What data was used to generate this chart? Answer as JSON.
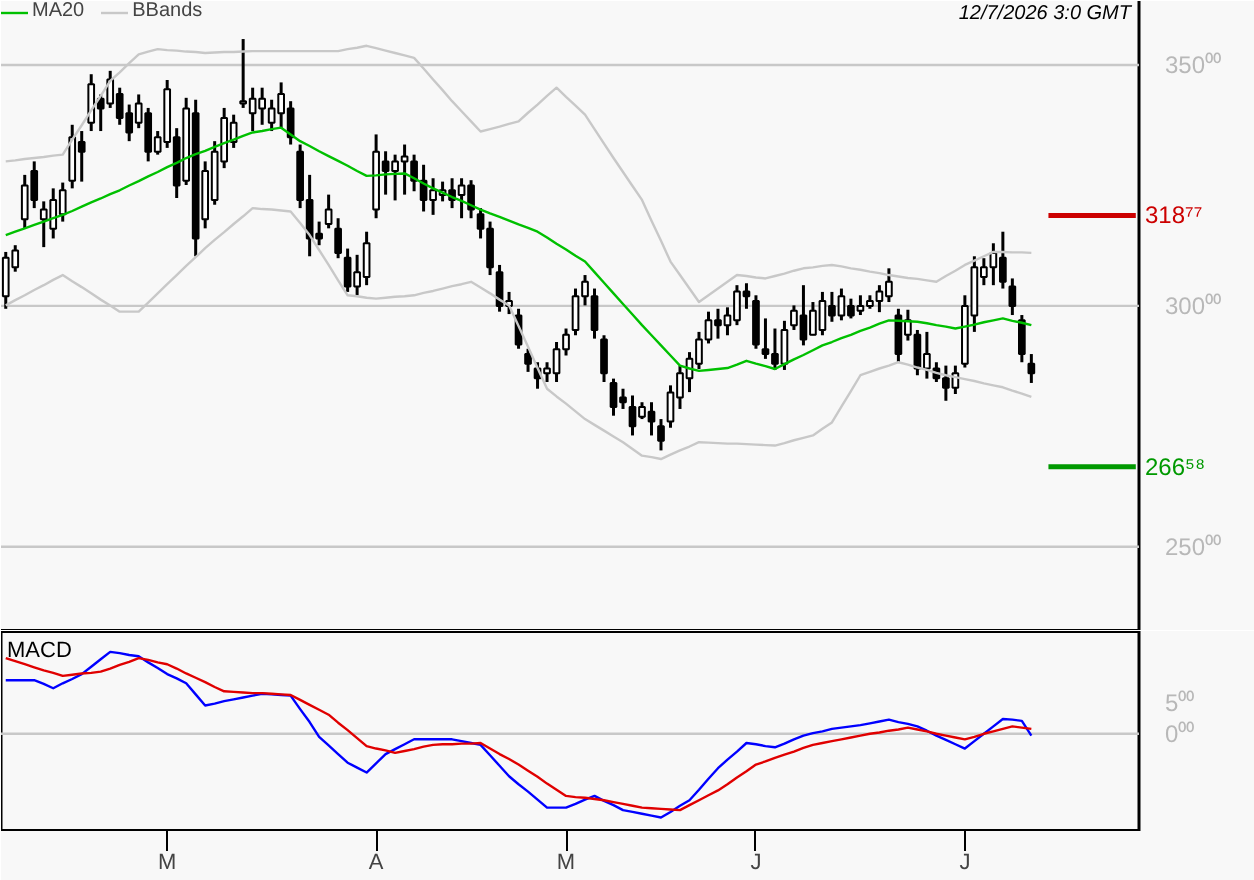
{
  "chart_data": [
    {
      "type": "candlestick",
      "color": "#000000",
      "categories": [
        null,
        null,
        null,
        null,
        null,
        null,
        null,
        null,
        null,
        null,
        null,
        null,
        null,
        null,
        null,
        null,
        null,
        null,
        null,
        null,
        null,
        null,
        null,
        null,
        null,
        null,
        null,
        null,
        null,
        null,
        null,
        null,
        null,
        null,
        null,
        null,
        null,
        null,
        null,
        null,
        null,
        null,
        null,
        null,
        null,
        null,
        null,
        null,
        null,
        null,
        null,
        null,
        null,
        null,
        null,
        null,
        null,
        null,
        null,
        null,
        null,
        null,
        null,
        null,
        null,
        null,
        null,
        null,
        null,
        null,
        null,
        null,
        null,
        null,
        null,
        null,
        null,
        null,
        null,
        null,
        null,
        null,
        null,
        null,
        null,
        null,
        null,
        null,
        null,
        null,
        null,
        null,
        null,
        null,
        null,
        null,
        null,
        null,
        null,
        null,
        null,
        null,
        null,
        null,
        null,
        null,
        null,
        null,
        null
      ],
      "ohlc": [
        [
          302,
          311.2,
          299.4,
          310
        ],
        [
          308,
          312.6,
          307.1,
          311.5
        ],
        [
          318,
          327.2,
          316.1,
          325
        ],
        [
          328,
          330.0,
          320.3,
          322
        ],
        [
          318,
          321.7,
          312.2,
          320
        ],
        [
          316,
          324.4,
          314.0,
          322
        ],
        [
          319,
          325.6,
          317.5,
          324
        ],
        [
          326,
          337.6,
          324.4,
          335
        ],
        [
          334,
          336.3,
          325.8,
          332
        ],
        [
          338,
          348.1,
          336.3,
          346
        ],
        [
          343,
          343.9,
          336.3,
          341
        ],
        [
          342,
          348.8,
          341.1,
          347
        ],
        [
          344,
          345.3,
          337.6,
          339
        ],
        [
          340,
          341.8,
          334.2,
          336
        ],
        [
          338,
          343.9,
          336.9,
          342
        ],
        [
          340,
          341.1,
          330.0,
          332
        ],
        [
          332,
          336.3,
          331.4,
          335
        ],
        [
          334,
          346.9,
          332.8,
          345
        ],
        [
          335,
          336.9,
          322.4,
          325
        ],
        [
          326,
          343.2,
          325.1,
          341
        ],
        [
          340,
          342.8,
          310.3,
          314
        ],
        [
          318,
          330.0,
          316.1,
          328
        ],
        [
          322,
          334.2,
          321.0,
          332
        ],
        [
          330,
          341.1,
          328.6,
          339
        ],
        [
          334,
          339.7,
          332.8,
          338
        ],
        [
          342,
          355.4,
          341.1,
          342.5
        ],
        [
          340,
          345.3,
          336.3,
          343
        ],
        [
          341,
          345.3,
          337.6,
          343
        ],
        [
          338,
          342.8,
          336.3,
          341
        ],
        [
          340,
          346.4,
          336.9,
          344
        ],
        [
          341,
          342.5,
          333.5,
          335
        ],
        [
          332,
          333.5,
          320.3,
          322
        ],
        [
          322,
          327.2,
          310.3,
          314
        ],
        [
          315,
          317.5,
          312.6,
          314
        ],
        [
          317,
          323.1,
          316.1,
          320
        ],
        [
          316,
          318.2,
          309.9,
          311
        ],
        [
          310,
          311.9,
          302.9,
          304
        ],
        [
          304,
          310.6,
          302.2,
          307
        ],
        [
          306,
          315.4,
          304.3,
          313
        ],
        [
          320,
          335.6,
          318.2,
          332
        ],
        [
          330,
          332.1,
          323.1,
          328
        ],
        [
          328,
          331.4,
          321.9,
          330
        ],
        [
          330,
          333.5,
          323.1,
          331
        ],
        [
          330,
          331.4,
          323.8,
          326
        ],
        [
          326,
          329.3,
          319.6,
          322
        ],
        [
          322,
          326.5,
          318.9,
          324
        ],
        [
          323,
          325.8,
          321.7,
          324
        ],
        [
          324,
          326.5,
          320.3,
          322
        ],
        [
          323,
          326.5,
          318.2,
          325
        ],
        [
          325,
          326.1,
          318.2,
          320
        ],
        [
          319,
          320.3,
          314.0,
          316
        ],
        [
          316,
          317.5,
          306.4,
          308
        ],
        [
          307,
          308.5,
          298.8,
          300
        ],
        [
          300,
          302.9,
          298.3,
          301
        ],
        [
          298,
          299.4,
          291.1,
          292
        ],
        [
          290,
          291.1,
          286.3,
          288
        ],
        [
          287,
          288.3,
          282.8,
          285
        ],
        [
          286,
          288.3,
          284.2,
          287
        ],
        [
          286,
          292.5,
          284.2,
          291
        ],
        [
          291,
          295.3,
          289.7,
          294
        ],
        [
          295,
          303.6,
          293.9,
          302
        ],
        [
          302,
          306.4,
          300.1,
          305
        ],
        [
          302,
          303.6,
          293.2,
          295
        ],
        [
          293,
          293.9,
          284.2,
          286
        ],
        [
          284,
          284.9,
          277.2,
          279
        ],
        [
          281,
          282.8,
          278.6,
          280
        ],
        [
          279,
          281.4,
          273.1,
          275
        ],
        [
          277,
          280.0,
          276.5,
          279
        ],
        [
          278,
          280.0,
          273.1,
          276
        ],
        [
          275,
          276.5,
          270.0,
          272
        ],
        [
          276,
          283.5,
          274.7,
          282
        ],
        [
          281,
          287.6,
          278.6,
          286
        ],
        [
          285,
          290.4,
          282.1,
          289
        ],
        [
          288,
          294.6,
          286.9,
          293
        ],
        [
          293,
          298.8,
          292.2,
          297
        ],
        [
          297,
          299.4,
          293.2,
          296
        ],
        [
          296,
          299.7,
          293.9,
          298
        ],
        [
          297,
          304.3,
          296.0,
          303
        ],
        [
          303,
          304.7,
          299.4,
          302
        ],
        [
          301,
          302.2,
          291.1,
          292
        ],
        [
          291,
          297.4,
          289.0,
          290
        ],
        [
          290,
          295.3,
          286.7,
          288
        ],
        [
          288,
          296.9,
          286.7,
          295
        ],
        [
          296,
          300.1,
          295.0,
          299
        ],
        [
          298,
          304.3,
          291.8,
          293
        ],
        [
          294,
          300.8,
          293.9,
          299
        ],
        [
          295,
          302.9,
          293.9,
          301
        ],
        [
          300,
          302.9,
          296.7,
          298
        ],
        [
          298,
          303.6,
          297.0,
          302
        ],
        [
          300,
          301.5,
          297.4,
          298
        ],
        [
          299,
          302.2,
          298.1,
          300
        ],
        [
          300,
          302.2,
          299.4,
          301
        ],
        [
          301,
          304.3,
          298.7,
          303
        ],
        [
          302,
          307.8,
          300.8,
          305
        ],
        [
          298,
          299.4,
          288.3,
          290
        ],
        [
          294,
          299.2,
          292.8,
          297
        ],
        [
          294,
          295.0,
          285.6,
          287
        ],
        [
          287,
          294.6,
          284.9,
          290
        ],
        [
          287,
          288.3,
          284.2,
          285
        ],
        [
          285,
          287.6,
          280.3,
          283
        ],
        [
          283,
          287.6,
          281.7,
          286
        ],
        [
          288,
          302.2,
          287.2,
          300
        ],
        [
          298,
          310.3,
          294.6,
          308
        ],
        [
          306,
          309.9,
          304.3,
          308
        ],
        [
          308,
          313.0,
          304.3,
          311
        ],
        [
          310,
          315.4,
          303.6,
          305
        ],
        [
          304,
          305.7,
          298.1,
          300
        ],
        [
          297,
          298.1,
          288.3,
          290
        ],
        [
          288,
          290.0,
          284.0,
          286
        ]
      ],
      "series": [
        {
          "type": "line",
          "name": "MA20",
          "color": "#00c000",
          "values": [
            314.7,
            315.4,
            316.1,
            316.8,
            317.5,
            318.2,
            318.9,
            319.7,
            320.6,
            321.5,
            322.3,
            323.2,
            324.0,
            325.0,
            325.9,
            326.9,
            327.8,
            328.8,
            329.7,
            330.7,
            331.5,
            332.2,
            333.0,
            333.8,
            334.5,
            335.3,
            336.0,
            336.3,
            336.7,
            337.0,
            335.6,
            334.2,
            333.2,
            332.1,
            331.1,
            330.1,
            329.1,
            328.0,
            327.0,
            327.1,
            327.3,
            327.4,
            327.5,
            326.5,
            325.4,
            324.4,
            323.5,
            322.6,
            321.8,
            320.9,
            320.0,
            319.2,
            318.5,
            317.7,
            316.9,
            316.2,
            315.4,
            314.2,
            312.9,
            311.7,
            310.4,
            309.2,
            307.0,
            304.8,
            302.6,
            300.4,
            298.2,
            296.0,
            293.9,
            291.8,
            289.7,
            287.6,
            287.0,
            286.5,
            286.7,
            286.9,
            287.1,
            287.8,
            288.6,
            288.0,
            287.5,
            286.9,
            287.9,
            288.9,
            289.8,
            290.8,
            291.8,
            292.5,
            293.3,
            294.0,
            294.8,
            295.5,
            296.3,
            297.0,
            296.9,
            296.8,
            296.7,
            296.4,
            296.0,
            295.7,
            295.3,
            295.7,
            296.1,
            296.6,
            297.0,
            297.4,
            296.9,
            296.5,
            296.0
          ]
        },
        {
          "type": "line",
          "name": "BBands",
          "color": "#c8c8c8",
          "values": [
            330.0,
            330.2,
            330.5,
            330.7,
            330.9,
            331.2,
            331.4,
            334.5,
            337.5,
            340.6,
            343.6,
            346.7,
            348.5,
            350.4,
            352.2,
            352.8,
            353.3,
            353.1,
            353.0,
            352.8,
            352.7,
            352.5,
            352.6,
            352.7,
            352.7,
            352.8,
            352.9,
            352.9,
            352.9,
            352.9,
            352.9,
            352.9,
            352.9,
            352.9,
            352.9,
            352.9,
            353.3,
            353.6,
            354.0,
            353.5,
            353.0,
            352.5,
            352.0,
            351.5,
            349.3,
            347.0,
            344.8,
            342.5,
            340.4,
            338.3,
            336.2,
            336.7,
            337.2,
            337.8,
            338.3,
            340.1,
            341.8,
            343.6,
            345.3,
            343.4,
            341.6,
            339.7,
            336.7,
            333.7,
            330.7,
            327.8,
            324.9,
            322.0,
            317.7,
            313.5,
            309.2,
            306.4,
            303.6,
            300.8,
            302.2,
            303.6,
            305.0,
            306.4,
            306.2,
            305.9,
            305.7,
            306.2,
            306.7,
            307.3,
            307.8,
            308.0,
            308.3,
            308.5,
            308.2,
            307.8,
            307.5,
            307.1,
            306.8,
            306.4,
            306.1,
            305.8,
            305.6,
            305.3,
            305.0,
            306.2,
            307.3,
            308.5,
            309.4,
            310.3,
            311.2,
            311.2,
            311.1,
            311.1,
            311.0
          ]
        },
        {
          "type": "line",
          "color": "#c8c8c8",
          "values": [
            300.1,
            301.2,
            302.2,
            303.3,
            304.3,
            305.4,
            306.4,
            305.1,
            303.9,
            302.6,
            301.3,
            300.1,
            298.8,
            298.8,
            298.8,
            300.7,
            302.6,
            304.5,
            306.4,
            308.3,
            310.1,
            312.0,
            313.7,
            315.3,
            317.0,
            318.6,
            320.3,
            320.1,
            320.0,
            319.8,
            319.6,
            317.2,
            314.7,
            311.6,
            308.5,
            305.3,
            302.2,
            302.0,
            301.7,
            301.5,
            301.7,
            301.9,
            302.0,
            302.2,
            302.7,
            303.1,
            303.6,
            304.1,
            304.5,
            305.0,
            303.8,
            302.6,
            301.3,
            300.1,
            295.8,
            291.5,
            287.1,
            282.8,
            281.2,
            279.7,
            278.1,
            276.5,
            275.3,
            274.1,
            272.9,
            271.7,
            270.3,
            268.9,
            268.6,
            268.2,
            269.1,
            270.0,
            270.8,
            271.7,
            271.6,
            271.5,
            271.4,
            271.4,
            271.3,
            271.2,
            271.1,
            271.0,
            271.5,
            272.1,
            272.6,
            273.1,
            274.5,
            275.8,
            279.1,
            282.3,
            285.6,
            286.3,
            287.0,
            287.6,
            288.3,
            287.8,
            287.2,
            286.7,
            286.1,
            285.6,
            285.2,
            284.8,
            284.4,
            283.9,
            283.5,
            283.1,
            282.4,
            281.8,
            281.1
          ]
        }
      ],
      "ylim": [
        232.5,
        363.3
      ],
      "yticks": [
        {
          "value": 350,
          "label": "350⁰⁰"
        },
        {
          "value": 300,
          "label": "300⁰⁰"
        },
        {
          "value": 250,
          "label": "250⁰⁰"
        }
      ],
      "grid": "y",
      "legend": "top left",
      "tick_labels": "y",
      "ref_lines": [
        {
          "axis": "y",
          "value": 318.77,
          "label": "318⁷⁷",
          "color": "#cc0000"
        },
        {
          "axis": "y",
          "value": 266.58,
          "label": "266⁵⁸",
          "color": "#009900"
        }
      ],
      "annotations": [
        "12/7/2026 3:0 GMT"
      ]
    },
    {
      "type": "line",
      "title": "MACD",
      "categories": [
        null,
        null,
        null,
        null,
        null,
        null,
        null,
        null,
        null,
        null,
        null,
        null,
        null,
        null,
        null,
        null,
        null,
        "M",
        null,
        null,
        null,
        null,
        null,
        null,
        null,
        null,
        null,
        null,
        null,
        null,
        null,
        null,
        null,
        null,
        null,
        null,
        null,
        null,
        null,
        "A",
        null,
        null,
        null,
        null,
        null,
        null,
        null,
        null,
        null,
        null,
        null,
        null,
        null,
        null,
        null,
        null,
        null,
        null,
        null,
        "M",
        null,
        null,
        null,
        null,
        null,
        null,
        null,
        null,
        null,
        null,
        null,
        null,
        null,
        null,
        null,
        null,
        null,
        null,
        null,
        "J",
        null,
        null,
        null,
        null,
        null,
        null,
        null,
        null,
        null,
        null,
        null,
        null,
        null,
        null,
        null,
        null,
        null,
        null,
        null,
        null,
        null,
        "J",
        null,
        null,
        null,
        null,
        null,
        null,
        null
      ],
      "series": [
        {
          "color": "#0000ff",
          "values": [
            8.7,
            8.7,
            8.7,
            8.7,
            8.1,
            7.4,
            8.2,
            8.9,
            9.7,
            10.9,
            12.1,
            13.3,
            13.1,
            12.8,
            12.6,
            11.6,
            10.7,
            9.7,
            9.0,
            8.2,
            6.4,
            4.6,
            4.9,
            5.3,
            5.6,
            5.9,
            6.2,
            6.5,
            6.4,
            6.3,
            6.2,
            4.0,
            1.9,
            -0.5,
            -1.9,
            -3.3,
            -4.7,
            -5.5,
            -6.3,
            -4.8,
            -3.3,
            -2.5,
            -1.7,
            -0.9,
            -0.9,
            -0.9,
            -0.9,
            -0.9,
            -1.2,
            -1.5,
            -1.8,
            -3.5,
            -5.2,
            -6.9,
            -8.2,
            -9.4,
            -10.7,
            -12.0,
            -12.0,
            -12.0,
            -11.4,
            -10.7,
            -10.1,
            -10.9,
            -11.6,
            -12.4,
            -12.7,
            -13.0,
            -13.3,
            -13.6,
            -12.7,
            -11.7,
            -10.8,
            -9.1,
            -7.3,
            -5.6,
            -4.2,
            -2.9,
            -1.5,
            -1.7,
            -2.0,
            -2.2,
            -1.6,
            -0.9,
            -0.3,
            0.1,
            0.4,
            0.8,
            1.0,
            1.2,
            1.4,
            1.7,
            2.0,
            2.3,
            1.9,
            1.6,
            1.2,
            0.5,
            -0.3,
            -1.0,
            -1.7,
            -2.4,
            -1.2,
            0.0,
            1.2,
            2.4,
            2.3,
            2.1,
            -0.3
          ]
        },
        {
          "color": "#e00000",
          "values": [
            12.3,
            11.8,
            11.3,
            10.8,
            10.3,
            9.9,
            9.4,
            9.6,
            9.8,
            9.9,
            10.1,
            10.6,
            11.2,
            11.7,
            12.3,
            12.0,
            11.6,
            11.3,
            10.6,
            9.8,
            9.1,
            8.4,
            7.6,
            6.9,
            6.8,
            6.7,
            6.6,
            6.6,
            6.5,
            6.4,
            6.3,
            5.5,
            4.7,
            3.9,
            3.1,
            1.8,
            0.6,
            -0.7,
            -2.0,
            -2.4,
            -2.7,
            -3.1,
            -2.8,
            -2.5,
            -2.1,
            -1.8,
            -1.7,
            -1.7,
            -1.6,
            -1.6,
            -1.5,
            -2.4,
            -3.3,
            -4.1,
            -5.0,
            -6.0,
            -7.0,
            -8.1,
            -9.1,
            -10.1,
            -10.3,
            -10.4,
            -10.6,
            -10.8,
            -11.1,
            -11.4,
            -11.7,
            -12.0,
            -12.1,
            -12.2,
            -12.3,
            -12.4,
            -11.6,
            -10.8,
            -10.0,
            -9.2,
            -8.2,
            -7.1,
            -6.1,
            -5.0,
            -4.5,
            -3.9,
            -3.4,
            -2.9,
            -2.3,
            -1.8,
            -1.5,
            -1.2,
            -0.9,
            -0.6,
            -0.3,
            0.0,
            0.2,
            0.5,
            0.7,
            1.0,
            0.7,
            0.4,
            0.0,
            -0.3,
            -0.6,
            -0.9,
            -0.5,
            0.0,
            0.4,
            0.8,
            1.2,
            1.0,
            0.8
          ]
        }
      ],
      "ylim": [
        -15.8,
        16.7
      ],
      "yticks": [
        {
          "value": 5,
          "label": "5⁰⁰"
        },
        {
          "value": 0,
          "label": "0⁰⁰"
        }
      ],
      "ref_lines": [
        {
          "axis": "y",
          "value": 0,
          "color": "#c8c8c8"
        }
      ]
    }
  ]
}
